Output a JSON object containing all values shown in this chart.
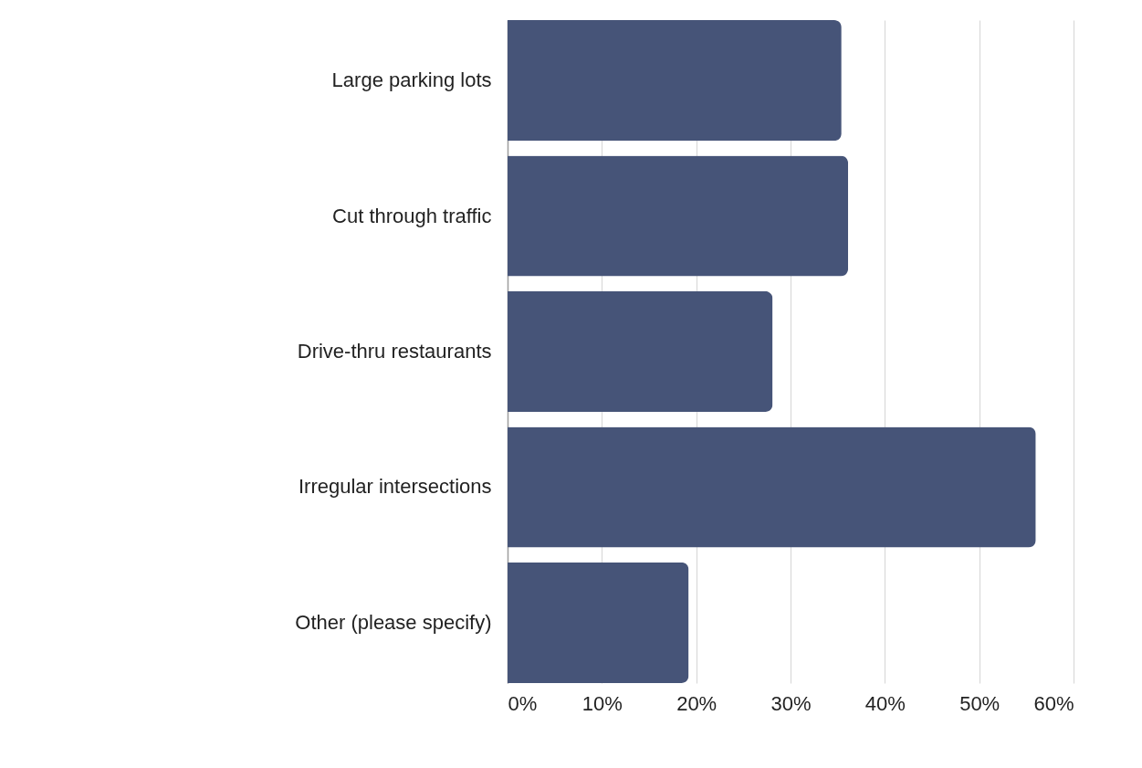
{
  "chart_data": {
    "type": "bar",
    "orientation": "horizontal",
    "categories": [
      "Large parking lots",
      "Cut through traffic",
      "Drive-thru restaurants",
      "Irregular intersections",
      "Other (please specify)"
    ],
    "values": [
      35.4,
      36.1,
      28.1,
      56.0,
      19.2
    ],
    "color": "#465478",
    "xlim": [
      0,
      60
    ],
    "xticks": [
      {
        "value": 0,
        "label": "0%"
      },
      {
        "value": 10,
        "label": "10%"
      },
      {
        "value": 20,
        "label": "20%"
      },
      {
        "value": 30,
        "label": "30%"
      },
      {
        "value": 40,
        "label": "40%"
      },
      {
        "value": 50,
        "label": "50%"
      },
      {
        "value": 60,
        "label": "60%"
      }
    ],
    "grid": "x"
  }
}
